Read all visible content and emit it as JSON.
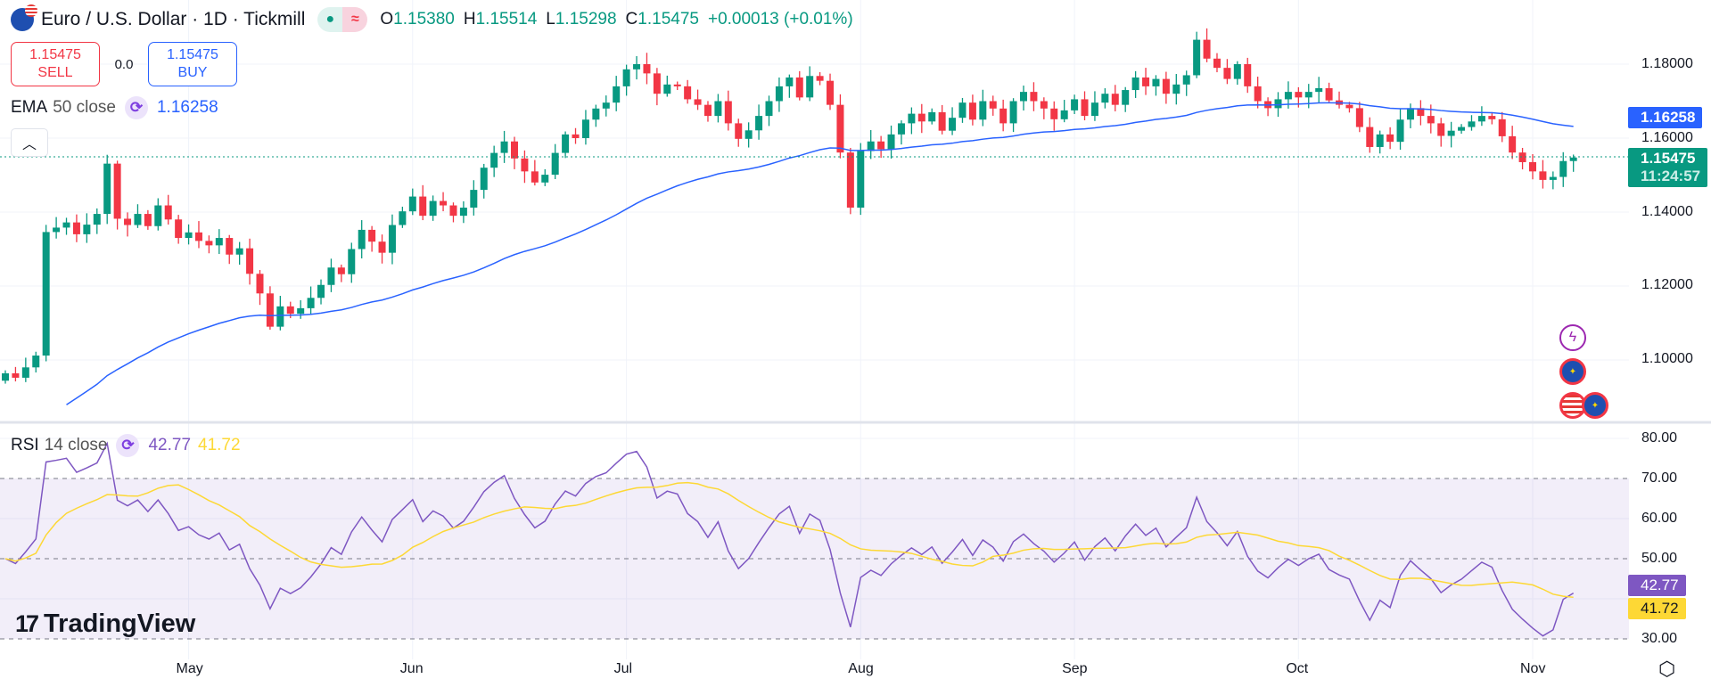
{
  "header": {
    "title": "Euro / U.S. Dollar · 1D · Tickmill",
    "ohlc": {
      "o_label": "O",
      "o": "1.15380",
      "h_label": "H",
      "h": "1.15514",
      "l_label": "L",
      "l": "1.15298",
      "c_label": "C",
      "c": "1.15475",
      "change": "+0.00013 (+0.01%)"
    },
    "market_status_icons": [
      "market-open-dot-icon",
      "approx-icon"
    ]
  },
  "trade": {
    "sell_price": "1.15475",
    "sell_label": "SELL",
    "spread": "0.0",
    "buy_price": "1.15475",
    "buy_label": "BUY"
  },
  "indicators": {
    "ema": {
      "name": "EMA",
      "params": "50 close",
      "value": "1.16258",
      "color": "#2962ff"
    },
    "rsi": {
      "name": "RSI",
      "params": "14 close",
      "value": "42.77",
      "ma_value": "41.72",
      "color": "#7e57c2",
      "ma_color": "#fdd835"
    }
  },
  "colors": {
    "up": "#089981",
    "down": "#f23645"
  },
  "price_axis": {
    "ticks": [
      "1.18000",
      "1.16000",
      "1.14000",
      "1.12000",
      "1.10000"
    ],
    "last_price": "1.15475",
    "countdown": "11:24:57",
    "ema_label": "1.16258"
  },
  "rsi_axis": {
    "ticks": [
      "80.00",
      "70.00",
      "60.00",
      "50.00",
      "30.00"
    ],
    "rsi_label": "42.77",
    "ma_label": "41.72"
  },
  "time_axis": {
    "labels": [
      "May",
      "Jun",
      "Jul",
      "Aug",
      "Sep",
      "Oct",
      "Nov"
    ]
  },
  "branding": {
    "logo_text": "TradingView"
  },
  "chart_data": {
    "type": "candlestick",
    "ylim": [
      1.08,
      1.19
    ],
    "rsi_ylim": [
      26,
      84
    ],
    "rsi_levels": [
      70,
      50,
      30
    ],
    "x_ticks": [
      {
        "label": "May",
        "index": 18
      },
      {
        "label": "Jun",
        "index": 40
      },
      {
        "label": "Jul",
        "index": 61
      },
      {
        "label": "Aug",
        "index": 84
      },
      {
        "label": "Sep",
        "index": 105
      },
      {
        "label": "Oct",
        "index": 127
      },
      {
        "label": "Nov",
        "index": 150
      }
    ],
    "close": [
      1.0964,
      1.0952,
      1.098,
      1.1012,
      1.1346,
      1.1358,
      1.1372,
      1.134,
      1.1366,
      1.1395,
      1.1531,
      1.1382,
      1.1365,
      1.1395,
      1.1362,
      1.1418,
      1.138,
      1.133,
      1.1345,
      1.1322,
      1.131,
      1.133,
      1.1285,
      1.1302,
      1.1233,
      1.118,
      1.109,
      1.1145,
      1.1125,
      1.114,
      1.1168,
      1.1203,
      1.125,
      1.1232,
      1.13,
      1.1352,
      1.132,
      1.129,
      1.1365,
      1.1402,
      1.1442,
      1.139,
      1.143,
      1.1418,
      1.139,
      1.1412,
      1.146,
      1.152,
      1.156,
      1.1591,
      1.1545,
      1.151,
      1.148,
      1.1501,
      1.156,
      1.161,
      1.16,
      1.165,
      1.168,
      1.1696,
      1.174,
      1.1786,
      1.18,
      1.1775,
      1.172,
      1.1745,
      1.174,
      1.1705,
      1.169,
      1.166,
      1.17,
      1.164,
      1.1598,
      1.1621,
      1.166,
      1.17,
      1.174,
      1.1764,
      1.171,
      1.1768,
      1.1755,
      1.169,
      1.1561,
      1.1412,
      1.1565,
      1.1591,
      1.157,
      1.161,
      1.164,
      1.1666,
      1.1645,
      1.167,
      1.162,
      1.1655,
      1.1696,
      1.165,
      1.17,
      1.168,
      1.164,
      1.17,
      1.1725,
      1.17,
      1.168,
      1.1651,
      1.1675,
      1.1705,
      1.166,
      1.1696,
      1.172,
      1.169,
      1.173,
      1.1764,
      1.174,
      1.176,
      1.172,
      1.1745,
      1.177,
      1.1866,
      1.1815,
      1.179,
      1.176,
      1.18,
      1.174,
      1.17,
      1.1681,
      1.1705,
      1.1725,
      1.171,
      1.1725,
      1.1735,
      1.1702,
      1.169,
      1.1681,
      1.163,
      1.1576,
      1.161,
      1.159,
      1.165,
      1.1681,
      1.166,
      1.164,
      1.1606,
      1.162,
      1.163,
      1.1645,
      1.166,
      1.1651,
      1.1605,
      1.1561,
      1.1535,
      1.151,
      1.1487,
      1.1495,
      1.1538,
      1.15475
    ]
  }
}
